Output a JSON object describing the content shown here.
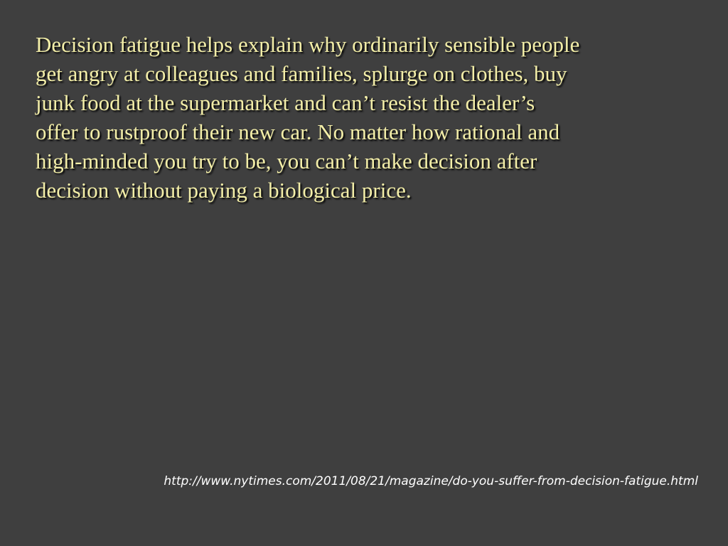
{
  "slide": {
    "quote_lines": [
      "Decision fatigue helps explain why ordinarily sensible people",
      "get angry at colleagues and families, splurge on clothes, buy",
      "junk food at the supermarket and can’t resist the dealer’s",
      "offer to rustproof their new car. No matter how rational and",
      "high-minded you try to be, you can’t make decision after",
      "decision without paying a biological price."
    ],
    "source_url": "http://www.nytimes.com/2011/08/21/magazine/do-you-suffer-from-decision-fatigue.html"
  },
  "colors": {
    "background": "#3f3f3f",
    "quote_text": "#f3eea8",
    "source_text": "#ffffff"
  }
}
